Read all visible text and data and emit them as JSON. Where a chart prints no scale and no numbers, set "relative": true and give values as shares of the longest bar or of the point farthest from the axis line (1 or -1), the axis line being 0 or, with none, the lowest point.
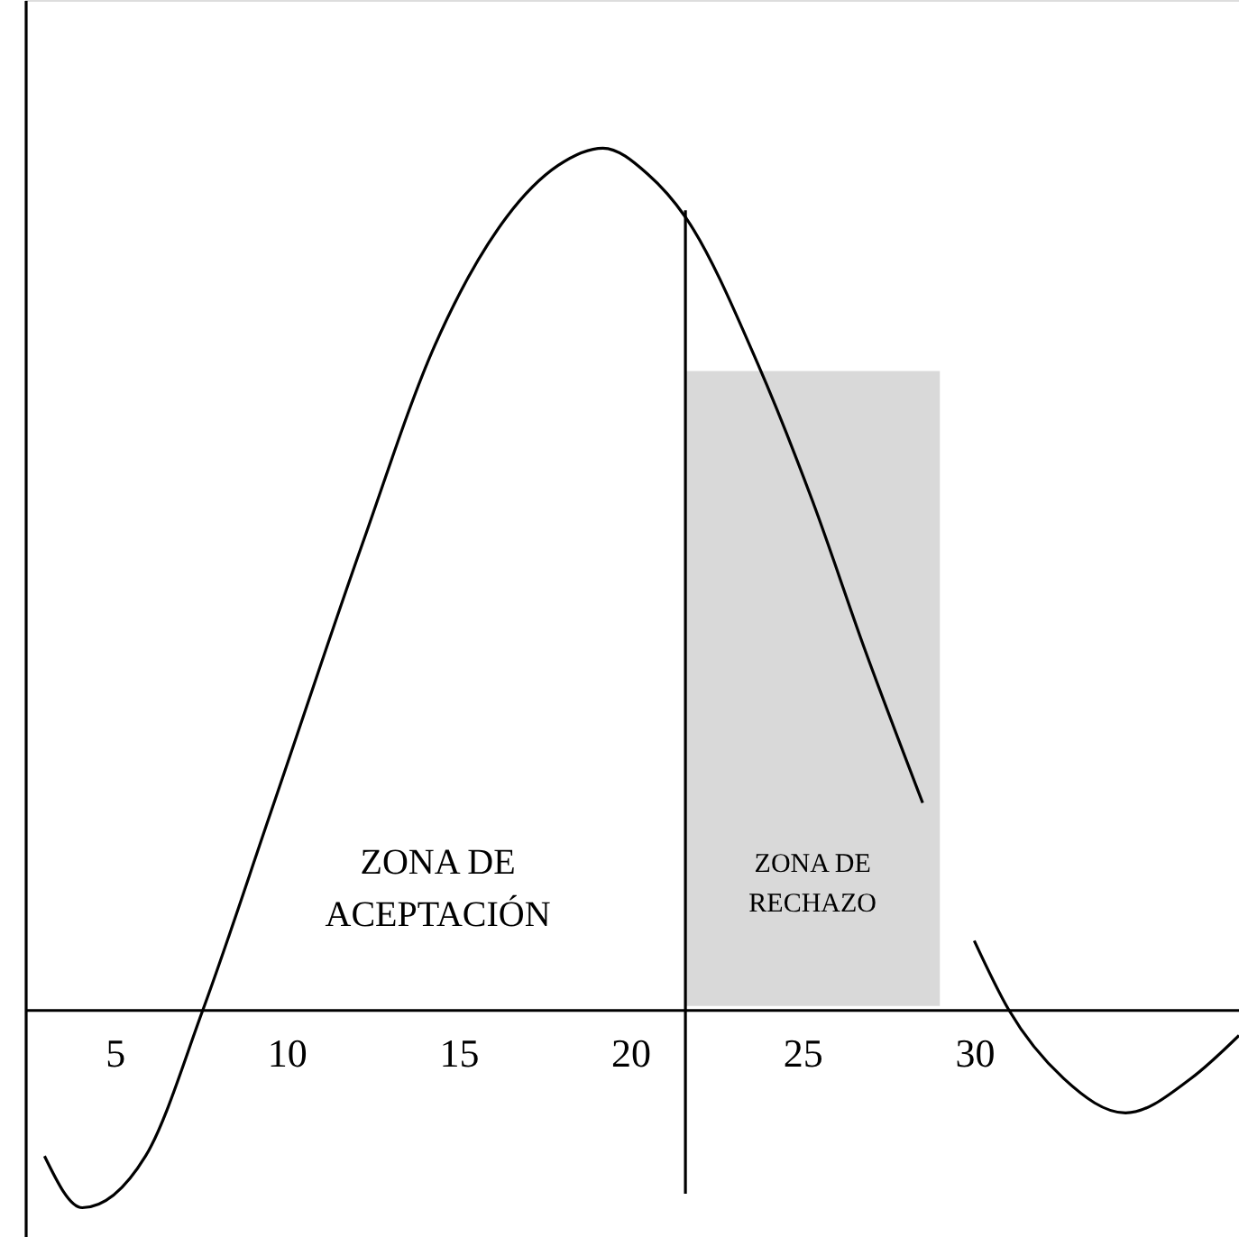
{
  "chart_data": {
    "type": "line",
    "relative": true,
    "x": [
      2.96,
      4.06,
      5.9,
      7.57,
      9.55,
      12.2,
      14.3,
      16.4,
      17.9,
      19.2,
      20.5,
      21.6,
      23.7,
      25.3,
      26.8,
      28.5,
      29.2,
      30.0,
      31.0,
      32.6,
      34.4,
      36.3,
      37.7
    ],
    "series": [
      {
        "color": "#000000",
        "values": [
          -0.17,
          -0.23,
          -0.17,
          0,
          0.23,
          0.54,
          0.77,
          0.92,
          0.98,
          1,
          0.97,
          0.92,
          0.75,
          0.59,
          0.42,
          0.24,
          null,
          0.08,
          0,
          -0.08,
          -0.12,
          -0.08,
          -0.03
        ]
      }
    ],
    "xlim": [
      2.4,
      37.7
    ],
    "xticks": [
      5,
      10,
      15,
      20,
      25,
      30
    ],
    "ref_lines": [
      {
        "axis": "x",
        "value": 21.6,
        "color": "#000000"
      }
    ],
    "bands": [
      {
        "axis": "x",
        "from": 21.6,
        "to": 29,
        "label": "ZONA DE RECHAZO",
        "color": "#d9d9d9"
      }
    ],
    "annotations": [
      "ZONA DE ACEPTACIÓN"
    ],
    "grid": false,
    "marker": "none",
    "line_style": "solid"
  }
}
